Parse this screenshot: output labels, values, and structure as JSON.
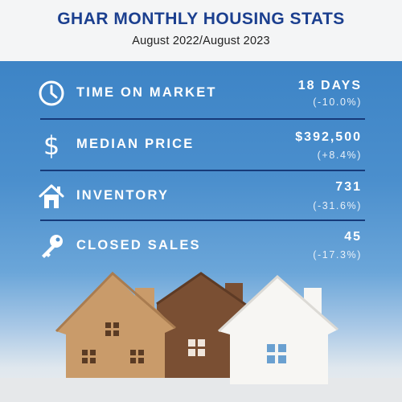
{
  "header": {
    "title": "GHAR MONTHLY HOUSING STATS",
    "subtitle": "August 2022/August 2023"
  },
  "stats": [
    {
      "icon": "clock-icon",
      "label": "TIME ON MARKET",
      "value": "18 DAYS",
      "change": "(-10.0%)"
    },
    {
      "icon": "dollar-icon",
      "label": "MEDIAN PRICE",
      "value": "$392,500",
      "change": "(+8.4%)"
    },
    {
      "icon": "house-icon",
      "label": "INVENTORY",
      "value": "731",
      "change": "(-31.6%)"
    },
    {
      "icon": "key-icon",
      "label": "CLOSED SALES",
      "value": "45",
      "change": "(-17.3%)"
    }
  ],
  "colors": {
    "title": "#1b3f8f",
    "divider": "#163a79",
    "background_blue": "#4b8fcd",
    "house_tan": "#c99b6a",
    "house_brown": "#7a4f33",
    "house_white": "#f7f6f3"
  }
}
